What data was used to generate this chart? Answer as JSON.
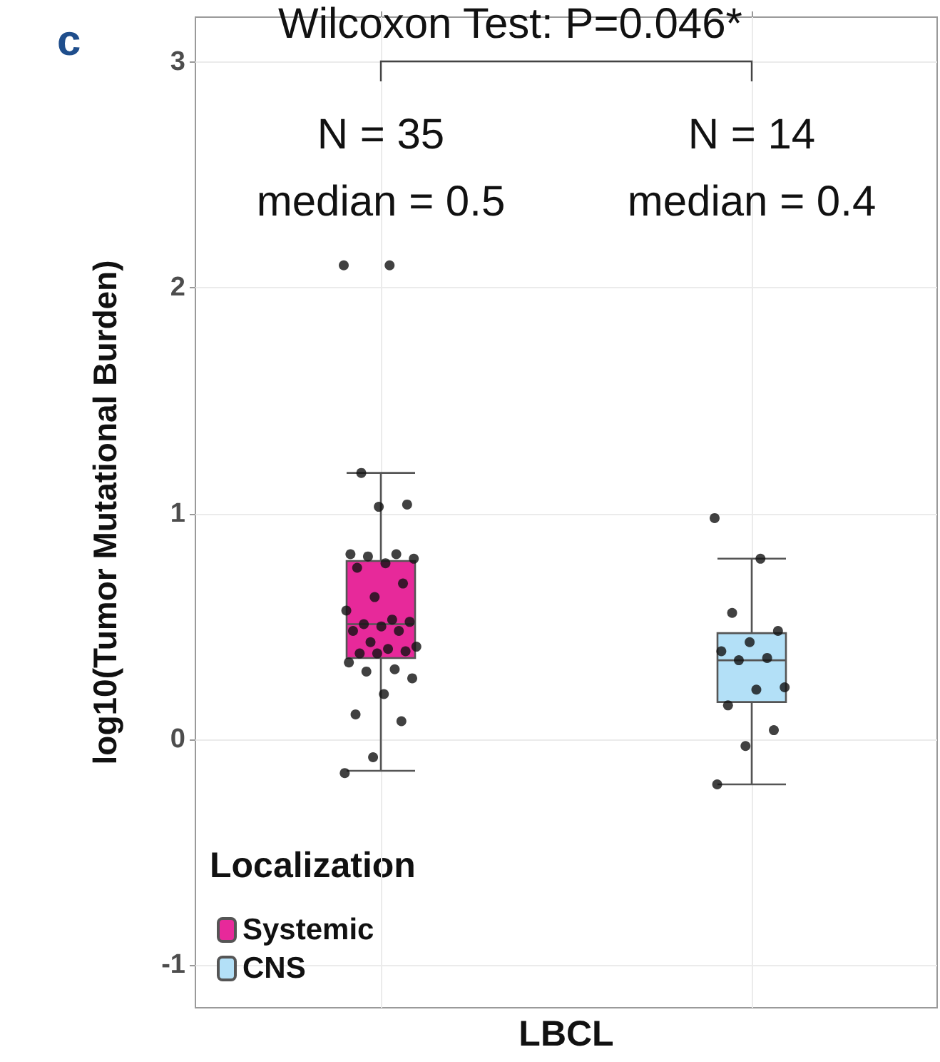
{
  "chart_data": {
    "type": "box",
    "title": "c",
    "subtitle": "Wilcoxon Test: P=0.046*",
    "ylabel": "log10(Tumor Mutational Burden)",
    "legend_title": "Localization",
    "categories": [
      "LBCL"
    ],
    "series": [
      {
        "name": "Systemic",
        "color": "#e7299a",
        "boxes": [
          {
            "low": -0.14,
            "q1": 0.36,
            "median": 0.51,
            "q3": 0.79,
            "high": 1.18
          }
        ]
      },
      {
        "type": "scatter",
        "color": "#111111",
        "x": [
          "LBCL",
          "LBCL",
          "LBCL",
          "LBCL",
          "LBCL",
          "LBCL",
          "LBCL",
          "LBCL",
          "LBCL",
          "LBCL",
          "LBCL",
          "LBCL",
          "LBCL",
          "LBCL",
          "LBCL",
          "LBCL",
          "LBCL",
          "LBCL",
          "LBCL",
          "LBCL",
          "LBCL",
          "LBCL",
          "LBCL",
          "LBCL",
          "LBCL",
          "LBCL",
          "LBCL",
          "LBCL",
          "LBCL",
          "LBCL",
          "LBCL",
          "LBCL",
          "LBCL",
          "LBCL",
          "LBCL"
        ],
        "values": [
          2.1,
          2.1,
          1.18,
          1.04,
          1.03,
          0.82,
          0.82,
          0.81,
          0.8,
          0.78,
          0.76,
          0.69,
          0.63,
          0.57,
          0.53,
          0.51,
          0.52,
          0.5,
          0.48,
          0.48,
          0.43,
          0.41,
          0.4,
          0.38,
          0.39,
          0.38,
          0.34,
          0.31,
          0.3,
          0.27,
          0.2,
          0.11,
          0.08,
          -0.08,
          -0.15
        ]
      },
      {
        "name": "CNS",
        "color": "#b3e0f7",
        "boxes": [
          {
            "low": -0.2,
            "q1": 0.165,
            "median": 0.35,
            "q3": 0.47,
            "high": 0.8
          }
        ]
      },
      {
        "type": "scatter",
        "color": "#111111",
        "x": [
          "LBCL",
          "LBCL",
          "LBCL",
          "LBCL",
          "LBCL",
          "LBCL",
          "LBCL",
          "LBCL",
          "LBCL",
          "LBCL",
          "LBCL",
          "LBCL",
          "LBCL",
          "LBCL"
        ],
        "values": [
          0.98,
          0.8,
          0.56,
          0.48,
          0.43,
          0.39,
          0.36,
          0.35,
          0.23,
          0.22,
          0.15,
          0.04,
          -0.03,
          -0.2
        ]
      }
    ],
    "annotations": [
      "N = 35",
      "N = 14",
      "median = 0.5",
      "median = 0.4"
    ],
    "ylim": [
      -1.19,
      3.2
    ],
    "yticks": [
      -1,
      0,
      1,
      2,
      3
    ],
    "grid": true,
    "legend": "bottom left",
    "marker": "circle"
  }
}
